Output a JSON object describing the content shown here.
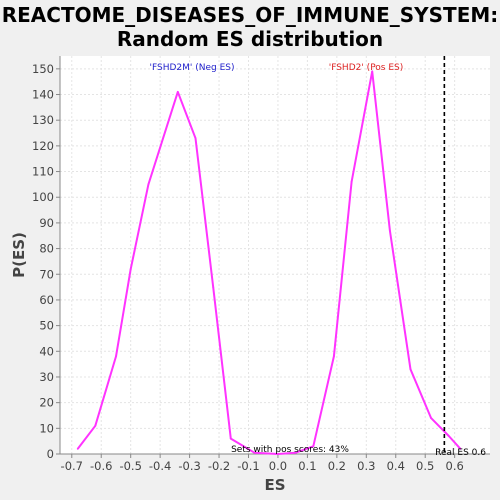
{
  "chart_data": {
    "type": "line",
    "title_line1": "REACTOME_DISEASES_OF_IMMUNE_SYSTEM:",
    "title_line2": "Random ES distribution",
    "xlabel": "ES",
    "ylabel": "P(ES)",
    "xlim": [
      -0.74,
      0.72
    ],
    "ylim": [
      0,
      155
    ],
    "grid": true,
    "x_ticks": [
      -0.7,
      -0.6,
      -0.5,
      -0.4,
      -0.3,
      -0.2,
      -0.1,
      0.0,
      0.1,
      0.2,
      0.3,
      0.4,
      0.5,
      0.6
    ],
    "x_tick_labels": [
      "-0.7",
      "-0.6",
      "-0.5",
      "-0.4",
      "-0.3",
      "-0.2",
      "-0.1",
      "0.0",
      "0.1",
      "0.2",
      "0.3",
      "0.4",
      "0.5",
      "0.6"
    ],
    "y_ticks": [
      0,
      10,
      20,
      30,
      40,
      50,
      60,
      70,
      80,
      90,
      100,
      110,
      120,
      130,
      140,
      150
    ],
    "series": [
      {
        "color": "#ff33ff",
        "points": [
          [
            -0.68,
            2
          ],
          [
            -0.62,
            11
          ],
          [
            -0.55,
            38
          ],
          [
            -0.5,
            72
          ],
          [
            -0.44,
            105
          ],
          [
            -0.34,
            141
          ],
          [
            -0.28,
            123
          ],
          [
            -0.22,
            65
          ],
          [
            -0.16,
            6
          ],
          [
            -0.08,
            0.5
          ],
          [
            0.0,
            0
          ],
          [
            0.06,
            0.5
          ],
          [
            0.12,
            3
          ],
          [
            0.19,
            38
          ],
          [
            0.25,
            106
          ],
          [
            0.32,
            149
          ],
          [
            0.38,
            87
          ],
          [
            0.45,
            33
          ],
          [
            0.52,
            14
          ],
          [
            0.58,
            7
          ],
          [
            0.62,
            2
          ]
        ]
      }
    ],
    "real_es": 0.565,
    "annotations": {
      "neg_label": "'FSHD2M' (Neg ES)",
      "neg_color": "#2222cc",
      "pos_label": "'FSHD2' (Pos ES)",
      "pos_color": "#dd2222",
      "pos_scores_text": "Sets with pos scores: 43%",
      "real_es_text": "Real ES 0.6"
    }
  }
}
